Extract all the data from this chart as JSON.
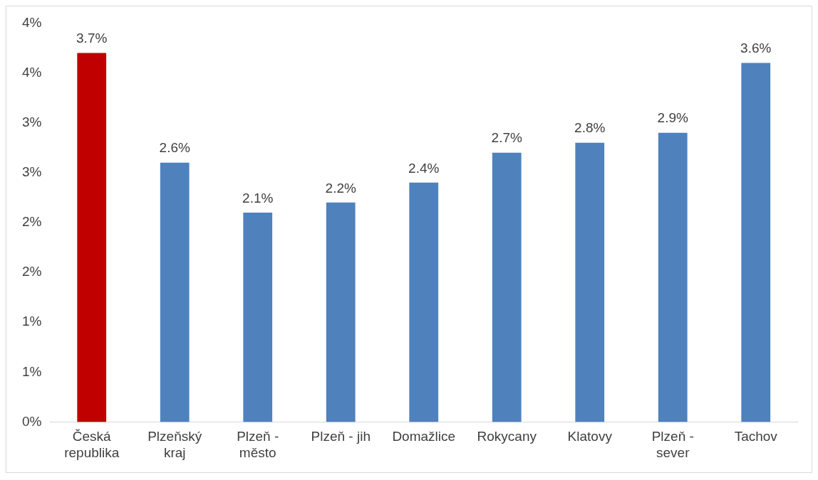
{
  "chart_data": {
    "type": "bar",
    "categories": [
      "Česká republika",
      "Plzeňský kraj",
      "Plzeň - město",
      "Plzeň - jih",
      "Domažlice",
      "Rokycany",
      "Klatovy",
      "Plzeň - sever",
      "Tachov"
    ],
    "values": [
      3.7,
      2.6,
      2.1,
      2.2,
      2.4,
      2.7,
      2.8,
      2.9,
      3.6
    ],
    "colors": [
      "#c00000",
      "#4f81bd",
      "#4f81bd",
      "#4f81bd",
      "#4f81bd",
      "#4f81bd",
      "#4f81bd",
      "#4f81bd",
      "#4f81bd"
    ],
    "value_labels": [
      "3.7%",
      "2.6%",
      "2.1%",
      "2.2%",
      "2.4%",
      "2.7%",
      "2.8%",
      "2.9%",
      "3.6%"
    ],
    "ylim": [
      0,
      4
    ],
    "yticks": [
      {
        "value": 0,
        "label": "0%"
      },
      {
        "value": 0.5,
        "label": "1%"
      },
      {
        "value": 1,
        "label": "1%"
      },
      {
        "value": 1.5,
        "label": "2%"
      },
      {
        "value": 2,
        "label": "2%"
      },
      {
        "value": 2.5,
        "label": "3%"
      },
      {
        "value": 3,
        "label": "3%"
      },
      {
        "value": 3.5,
        "label": "4%"
      },
      {
        "value": 4,
        "label": "4%"
      }
    ],
    "grid": false,
    "legend": false
  }
}
